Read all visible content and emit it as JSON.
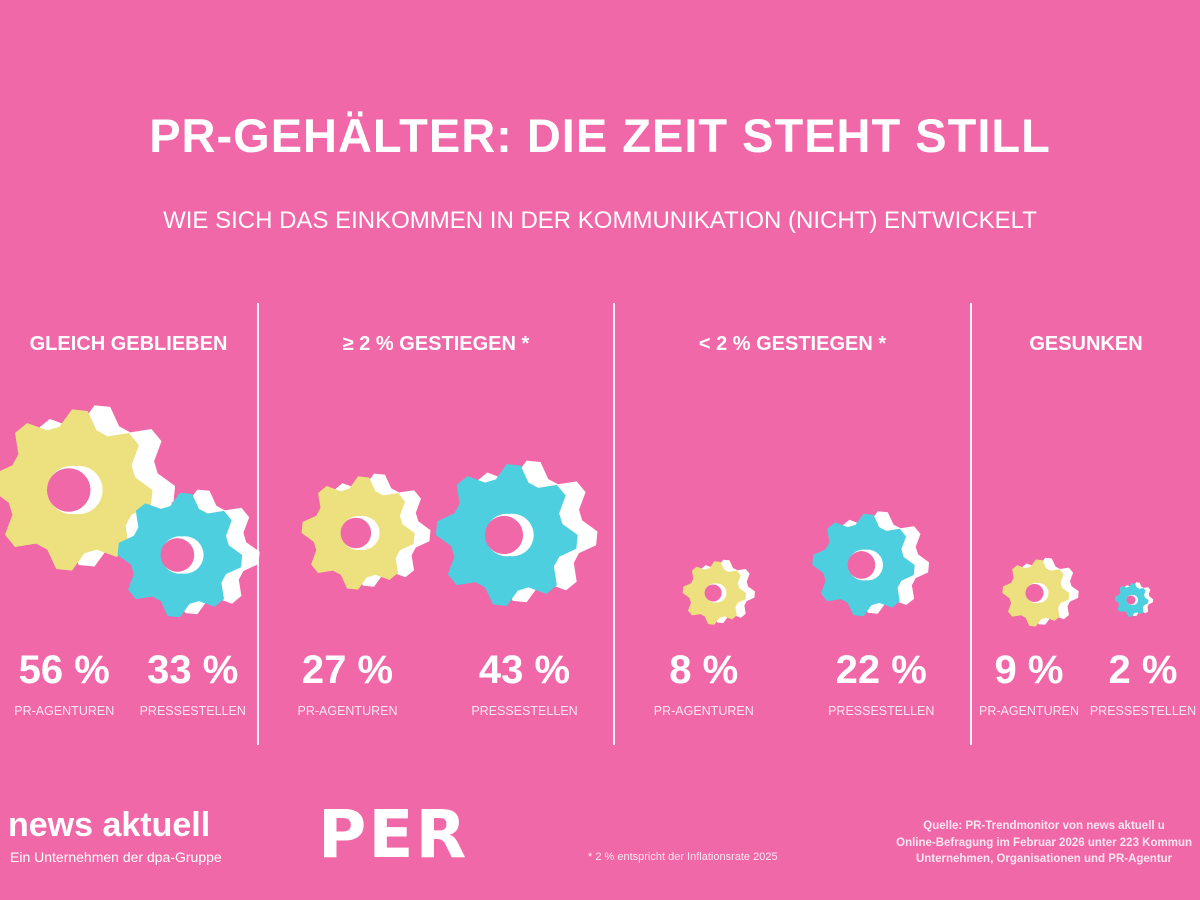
{
  "title": "PR-GEHÄLTER: DIE ZEIT STEHT STILL",
  "subtitle": "WIE SICH DAS EINKOMMEN IN DER KOMMUNIKATION (NICHT) ENTWICKELT",
  "colors": {
    "background": "#F068A8",
    "pr_agenturen": "#EDE17F",
    "pressestellen": "#4DCFE0",
    "gear_side": "#FFFFFF"
  },
  "chart_data": {
    "type": "pictogram-bar",
    "categories": [
      "GLEICH GEBLIEBEN",
      "≥ 2 % GESTIEGEN *",
      "< 2 % GESTIEGEN *",
      "GESUNKEN"
    ],
    "series": [
      {
        "name": "PR-AGENTUREN",
        "values": [
          56,
          27,
          8,
          9
        ],
        "labels": [
          "56 %",
          "27 %",
          "8 %",
          "9 %"
        ]
      },
      {
        "name": "PRESSESTELLEN",
        "values": [
          33,
          43,
          22,
          2
        ],
        "labels": [
          "33 %",
          "43 %",
          "22 %",
          "2 %"
        ]
      }
    ],
    "unit": "%",
    "marker": "gear-icon"
  },
  "footer": {
    "brand": "news aktuell",
    "brand_sub": "Ein Unternehmen der dpa-Gruppe",
    "partner_logo": "PER",
    "footnote": "* 2 % entspricht der Inflationsrate 2025",
    "source_lines": [
      "Quelle: PR-Trendmonitor von news aktuell u",
      "Online-Befragung im Februar 2026 unter 223 Kommun",
      "Unternehmen, Organisationen und PR-Agentur"
    ]
  }
}
